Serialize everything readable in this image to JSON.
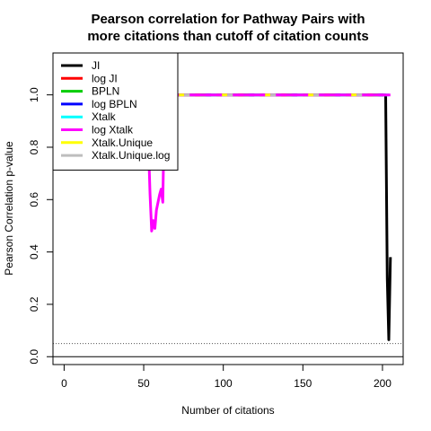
{
  "chart_data": {
    "type": "line",
    "title_line1": "Pearson correlation for Pathway Pairs with",
    "title_line2": "more citations than cutoff of citation counts",
    "xlabel": "Number of citations",
    "ylabel": "Pearson Correlation p-value",
    "xlim": [
      -7,
      213
    ],
    "ylim": [
      -0.03,
      1.16
    ],
    "x_ticks": [
      0,
      50,
      100,
      150,
      200
    ],
    "y_ticks": [
      0.0,
      0.2,
      0.4,
      0.6,
      0.8,
      1.0
    ],
    "y_tick_labels": [
      "0.0",
      "0.2",
      "0.4",
      "0.6",
      "0.8",
      "1.0"
    ],
    "hlines": [
      {
        "y": 0.0,
        "style": "solid",
        "color": "#000000"
      },
      {
        "y": 0.05,
        "style": "dotted",
        "color": "#555555"
      }
    ],
    "legend_position": "top-left",
    "series": [
      {
        "name": "JI",
        "color": "#000000",
        "width": 3,
        "x": [
          1,
          200,
          202,
          203,
          204,
          205
        ],
        "y": [
          1.0,
          1.0,
          1.0,
          0.3,
          0.065,
          0.38
        ]
      },
      {
        "name": "log JI",
        "color": "#ff0000",
        "width": 3,
        "x": [
          1,
          205
        ],
        "y": [
          1.0,
          1.0
        ]
      },
      {
        "name": "BPLN",
        "color": "#00cd00",
        "width": 3,
        "x": [
          1,
          205
        ],
        "y": [
          1.0,
          1.0
        ]
      },
      {
        "name": "log BPLN",
        "color": "#0000ff",
        "width": 3,
        "x": [
          1,
          205
        ],
        "y": [
          1.0,
          1.0
        ]
      },
      {
        "name": "Xtalk",
        "color": "#00ffff",
        "width": 3,
        "x": [
          1,
          205
        ],
        "y": [
          1.0,
          1.0
        ]
      },
      {
        "name": "log Xtalk",
        "color": "#ff00ff",
        "width": 3,
        "x": [
          1,
          52,
          54,
          55,
          56,
          57,
          58,
          60,
          61,
          62,
          63,
          64,
          66,
          205
        ],
        "y": [
          1.0,
          1.0,
          0.62,
          0.48,
          0.52,
          0.49,
          0.56,
          0.62,
          0.64,
          0.59,
          0.95,
          1.0,
          1.0,
          1.0
        ]
      },
      {
        "name": "Xtalk.Unique",
        "color": "#ffff00",
        "width": 3,
        "x": [
          1,
          205
        ],
        "y": [
          1.0,
          1.0
        ]
      },
      {
        "name": "Xtalk.Unique.log",
        "color": "#bebebe",
        "width": 3,
        "x": [
          1,
          205
        ],
        "y": [
          1.0,
          1.0
        ]
      }
    ]
  }
}
